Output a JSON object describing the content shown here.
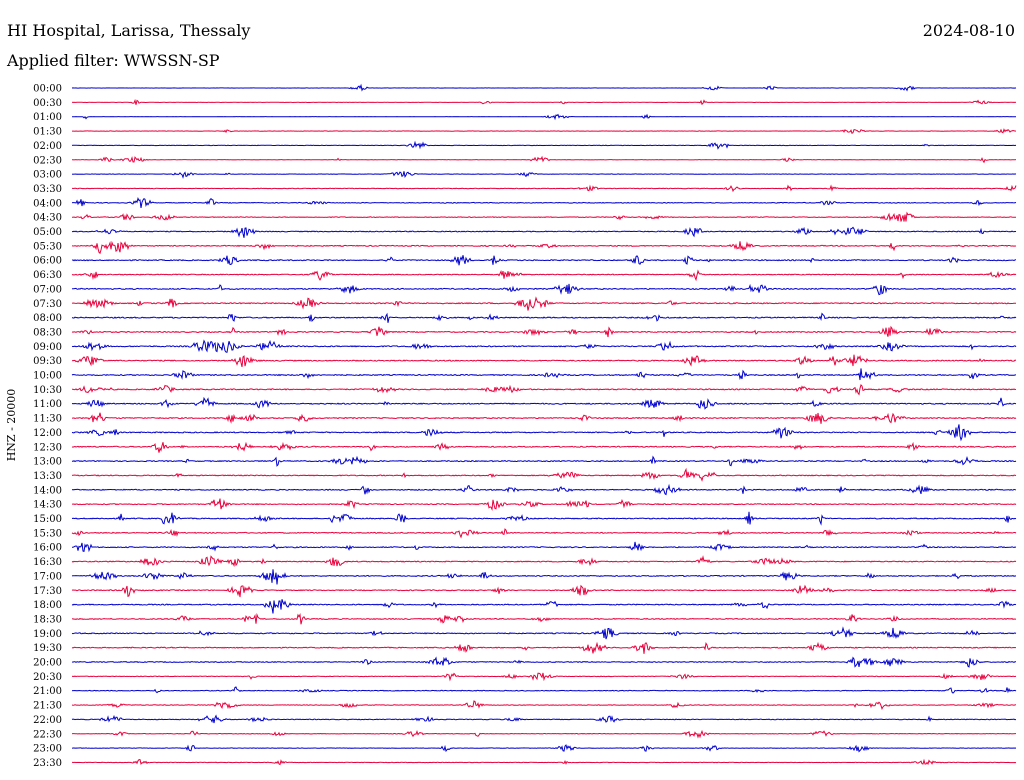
{
  "header": {
    "station": "HI Hospital, Larissa, Thessaly",
    "date": "2024-08-10",
    "filter": "Applied filter: WWSSN-SP"
  },
  "chart_data": {
    "type": "line",
    "title": "HI Hospital, Larissa, Thessaly",
    "subtitle": "Applied filter: WWSSN-SP",
    "ylabel": "HNZ - 20000",
    "xlabel": "",
    "colors": [
      "#0000cc",
      "#e8003c"
    ],
    "trace_count": 48,
    "rows": [
      {
        "label": "00:00",
        "amp": 0.15
      },
      {
        "label": "00:30",
        "amp": 0.2
      },
      {
        "label": "01:00",
        "amp": 0.15
      },
      {
        "label": "01:30",
        "amp": 0.25
      },
      {
        "label": "02:00",
        "amp": 0.35
      },
      {
        "label": "02:30",
        "amp": 0.3
      },
      {
        "label": "03:00",
        "amp": 0.3
      },
      {
        "label": "03:30",
        "amp": 0.4
      },
      {
        "label": "04:00",
        "amp": 0.6
      },
      {
        "label": "04:30",
        "amp": 0.55
      },
      {
        "label": "05:00",
        "amp": 0.7
      },
      {
        "label": "05:30",
        "amp": 0.75
      },
      {
        "label": "06:00",
        "amp": 0.8
      },
      {
        "label": "06:30",
        "amp": 0.7
      },
      {
        "label": "07:00",
        "amp": 0.85
      },
      {
        "label": "07:30",
        "amp": 0.85
      },
      {
        "label": "08:00",
        "amp": 0.9
      },
      {
        "label": "08:30",
        "amp": 0.85
      },
      {
        "label": "09:00",
        "amp": 0.9
      },
      {
        "label": "09:30",
        "amp": 0.85
      },
      {
        "label": "10:00",
        "amp": 0.85
      },
      {
        "label": "10:30",
        "amp": 0.85
      },
      {
        "label": "11:00",
        "amp": 0.9
      },
      {
        "label": "11:30",
        "amp": 0.85
      },
      {
        "label": "12:00",
        "amp": 0.85
      },
      {
        "label": "12:30",
        "amp": 0.8
      },
      {
        "label": "13:00",
        "amp": 0.8
      },
      {
        "label": "13:30",
        "amp": 0.75
      },
      {
        "label": "14:00",
        "amp": 0.8
      },
      {
        "label": "14:30",
        "amp": 0.75
      },
      {
        "label": "15:00",
        "amp": 0.8
      },
      {
        "label": "15:30",
        "amp": 0.75
      },
      {
        "label": "16:00",
        "amp": 0.8
      },
      {
        "label": "16:30",
        "amp": 0.75
      },
      {
        "label": "17:00",
        "amp": 0.8
      },
      {
        "label": "17:30",
        "amp": 0.75
      },
      {
        "label": "18:00",
        "amp": 0.8
      },
      {
        "label": "18:30",
        "amp": 0.75
      },
      {
        "label": "19:00",
        "amp": 0.8
      },
      {
        "label": "19:30",
        "amp": 0.75
      },
      {
        "label": "20:00",
        "amp": 0.7
      },
      {
        "label": "20:30",
        "amp": 0.5
      },
      {
        "label": "21:00",
        "amp": 0.6
      },
      {
        "label": "21:30",
        "amp": 0.5
      },
      {
        "label": "22:00",
        "amp": 0.55
      },
      {
        "label": "22:30",
        "amp": 0.45
      },
      {
        "label": "23:00",
        "amp": 0.35
      },
      {
        "label": "23:30",
        "amp": 0.35
      }
    ]
  }
}
